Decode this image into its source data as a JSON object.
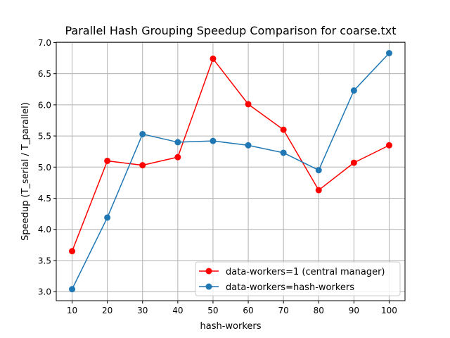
{
  "chart_data": {
    "type": "line",
    "title": "Parallel Hash Grouping Speedup Comparison for coarse.txt",
    "xlabel": "hash-workers",
    "ylabel": "Speedup (T_serial / T_parallel)",
    "x": [
      10,
      20,
      30,
      40,
      50,
      60,
      70,
      80,
      90,
      100
    ],
    "xticks": [
      10,
      20,
      30,
      40,
      50,
      60,
      70,
      80,
      90,
      100
    ],
    "yticks": [
      "3.0",
      "3.5",
      "4.0",
      "4.5",
      "5.0",
      "5.5",
      "6.0",
      "6.5",
      "7.0"
    ],
    "xlim": [
      5.5,
      104.5
    ],
    "ylim": [
      2.855,
      7.005
    ],
    "grid": true,
    "legend_position": "lower right",
    "series": [
      {
        "name": "data-workers=1 (central manager)",
        "color": "#ff0000",
        "marker": "circle",
        "values": [
          3.65,
          5.1,
          5.03,
          5.16,
          6.74,
          6.01,
          5.6,
          4.63,
          5.07,
          5.35
        ]
      },
      {
        "name": "data-workers=hash-workers",
        "color": "#1f77b4",
        "marker": "circle",
        "values": [
          3.04,
          4.19,
          5.53,
          5.4,
          5.42,
          5.35,
          5.23,
          4.95,
          6.23,
          6.83
        ]
      }
    ]
  }
}
